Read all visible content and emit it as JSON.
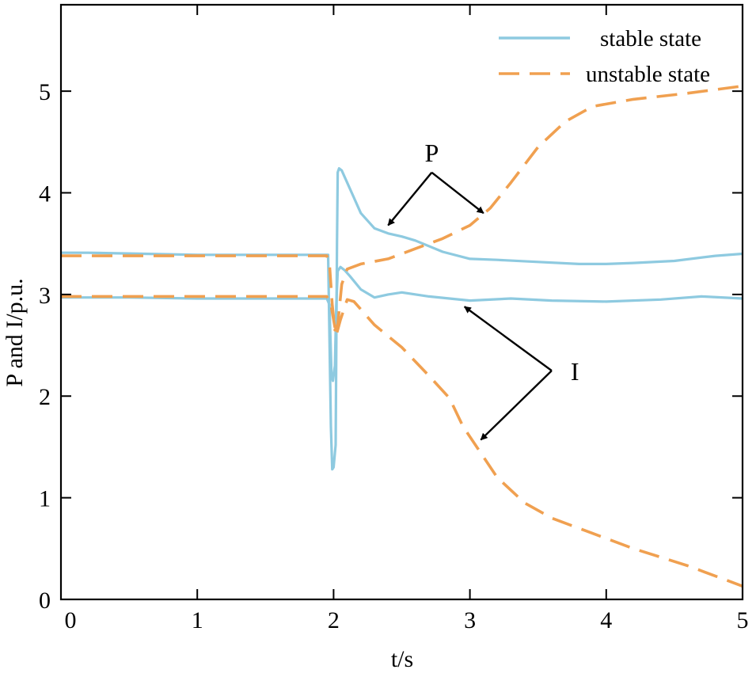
{
  "chart_data": {
    "type": "line",
    "xlabel": "t/s",
    "ylabel": "P and I/p.u.",
    "xlim": [
      0,
      5
    ],
    "ylim": [
      0,
      5.85
    ],
    "xticks": [
      0,
      1,
      2,
      3,
      4,
      5
    ],
    "yticks": [
      0,
      1,
      2,
      3,
      4,
      5
    ],
    "grid": false,
    "legend_position": "top-right",
    "colors": {
      "stable": "#8ecae0",
      "unstable": "#f0a050",
      "axis": "#000000"
    },
    "legend": [
      {
        "label": "stable state",
        "style": "solid",
        "color": "#8ecae0"
      },
      {
        "label": "unstable state",
        "style": "dashed",
        "color": "#f0a050"
      }
    ],
    "series": [
      {
        "name": "stable state",
        "style": "solid",
        "color": "#8ecae0",
        "points": [
          [
            0,
            3.41
          ],
          [
            0.2,
            3.41
          ],
          [
            0.6,
            3.4
          ],
          [
            1.0,
            3.39
          ],
          [
            1.5,
            3.39
          ],
          [
            1.96,
            3.39
          ],
          [
            1.98,
            1.7
          ],
          [
            1.99,
            1.28
          ],
          [
            2.0,
            1.3
          ],
          [
            2.015,
            1.52
          ],
          [
            2.025,
            3.5
          ],
          [
            2.03,
            4.2
          ],
          [
            2.04,
            4.24
          ],
          [
            2.06,
            4.22
          ],
          [
            2.1,
            4.1
          ],
          [
            2.15,
            3.95
          ],
          [
            2.2,
            3.8
          ],
          [
            2.3,
            3.65
          ],
          [
            2.4,
            3.6
          ],
          [
            2.5,
            3.57
          ],
          [
            2.6,
            3.53
          ],
          [
            2.8,
            3.42
          ],
          [
            3.0,
            3.35
          ],
          [
            3.2,
            3.34
          ],
          [
            3.5,
            3.32
          ],
          [
            3.8,
            3.3
          ],
          [
            4.0,
            3.3
          ],
          [
            4.2,
            3.31
          ],
          [
            4.5,
            3.33
          ],
          [
            4.8,
            3.38
          ],
          [
            5.0,
            3.4
          ]
        ]
      },
      {
        "name": "stable state",
        "style": "solid",
        "color": "#8ecae0",
        "points": [
          [
            0,
            2.97
          ],
          [
            0.5,
            2.97
          ],
          [
            1.0,
            2.96
          ],
          [
            1.5,
            2.96
          ],
          [
            1.95,
            2.96
          ],
          [
            1.97,
            2.9
          ],
          [
            1.985,
            2.2
          ],
          [
            1.995,
            2.15
          ],
          [
            2.01,
            2.3
          ],
          [
            2.02,
            2.9
          ],
          [
            2.03,
            3.23
          ],
          [
            2.05,
            3.27
          ],
          [
            2.08,
            3.24
          ],
          [
            2.12,
            3.18
          ],
          [
            2.2,
            3.05
          ],
          [
            2.3,
            2.97
          ],
          [
            2.4,
            3.0
          ],
          [
            2.5,
            3.02
          ],
          [
            2.7,
            2.98
          ],
          [
            3.0,
            2.94
          ],
          [
            3.3,
            2.96
          ],
          [
            3.6,
            2.94
          ],
          [
            4.0,
            2.93
          ],
          [
            4.4,
            2.95
          ],
          [
            4.7,
            2.98
          ],
          [
            5.0,
            2.96
          ]
        ]
      },
      {
        "name": "unstable state",
        "style": "dashed",
        "color": "#f0a050",
        "points": [
          [
            0,
            3.38
          ],
          [
            0.5,
            3.38
          ],
          [
            1.0,
            3.38
          ],
          [
            1.5,
            3.38
          ],
          [
            1.95,
            3.38
          ],
          [
            1.97,
            3.3
          ],
          [
            1.99,
            2.9
          ],
          [
            2.01,
            2.65
          ],
          [
            2.03,
            2.7
          ],
          [
            2.06,
            3.1
          ],
          [
            2.1,
            3.25
          ],
          [
            2.2,
            3.3
          ],
          [
            2.4,
            3.35
          ],
          [
            2.6,
            3.45
          ],
          [
            2.8,
            3.55
          ],
          [
            3.0,
            3.68
          ],
          [
            3.15,
            3.85
          ],
          [
            3.3,
            4.1
          ],
          [
            3.5,
            4.45
          ],
          [
            3.7,
            4.7
          ],
          [
            3.9,
            4.85
          ],
          [
            4.2,
            4.92
          ],
          [
            4.6,
            4.98
          ],
          [
            5.0,
            5.05
          ]
        ]
      },
      {
        "name": "unstable state",
        "style": "dashed",
        "color": "#f0a050",
        "points": [
          [
            0,
            2.98
          ],
          [
            0.5,
            2.98
          ],
          [
            1.0,
            2.98
          ],
          [
            1.5,
            2.98
          ],
          [
            1.95,
            2.98
          ],
          [
            1.98,
            2.9
          ],
          [
            2.0,
            2.75
          ],
          [
            2.02,
            2.6
          ],
          [
            2.05,
            2.75
          ],
          [
            2.1,
            2.95
          ],
          [
            2.15,
            2.93
          ],
          [
            2.3,
            2.7
          ],
          [
            2.5,
            2.48
          ],
          [
            2.7,
            2.2
          ],
          [
            2.85,
            1.98
          ],
          [
            2.95,
            1.7
          ],
          [
            3.05,
            1.5
          ],
          [
            3.2,
            1.2
          ],
          [
            3.4,
            0.95
          ],
          [
            3.6,
            0.8
          ],
          [
            3.9,
            0.65
          ],
          [
            4.2,
            0.5
          ],
          [
            4.6,
            0.33
          ],
          [
            5.0,
            0.13
          ]
        ]
      }
    ],
    "annotations": [
      {
        "text": "P",
        "label_at": [
          2.72,
          4.2
        ],
        "arrows_to": [
          [
            2.4,
            3.68
          ],
          [
            3.1,
            3.8
          ]
        ]
      },
      {
        "text": "I",
        "label_at": [
          3.6,
          2.25
        ],
        "arrows_to": [
          [
            2.96,
            2.88
          ],
          [
            3.08,
            1.57
          ]
        ]
      }
    ]
  }
}
